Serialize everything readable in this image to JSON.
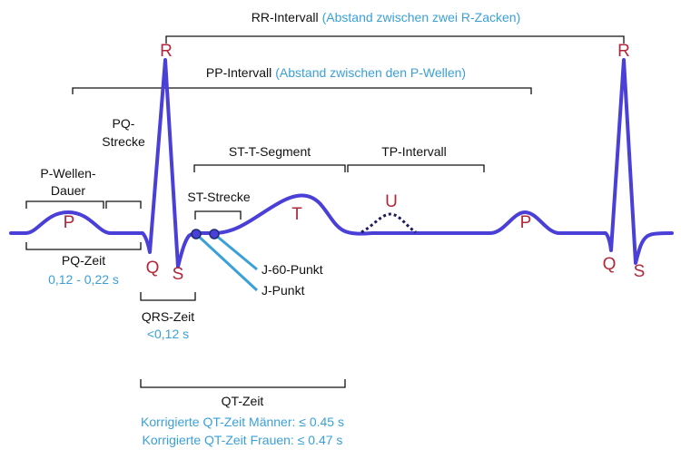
{
  "colors": {
    "wave": "#4a3fd6",
    "wave_label": "#b2283a",
    "annotation": "#3aa0d8",
    "bracket": "#111111",
    "u_wave": "#1c1c5c"
  },
  "waves": {
    "p1": "P",
    "q1": "Q",
    "r1": "R",
    "s1": "S",
    "t": "T",
    "u": "U",
    "p2": "P",
    "r2": "R",
    "q2": "Q",
    "s2": "S"
  },
  "intervals": {
    "rr_title": "RR-Intervall",
    "rr_note": "(Abstand zwischen zwei R-Zacken)",
    "pp_title": "PP-Intervall",
    "pp_note": "(Abstand zwischen den P-Wellen)",
    "pq_strecke_line1": "PQ-",
    "pq_strecke_line2": "Strecke",
    "p_dauer_line1": "P-Wellen-",
    "p_dauer_line2": "Dauer",
    "st_t_segment": "ST-T-Segment",
    "tp_intervall": "TP-Intervall",
    "st_strecke": "ST-Strecke",
    "pq_zeit": "PQ-Zeit",
    "pq_zeit_value": "0,12 - 0,22 s",
    "qrs_zeit": "QRS-Zeit",
    "qrs_zeit_value": "<0,12 s",
    "qt_zeit": "QT-Zeit",
    "qt_men": "Korrigierte QT-Zeit Männer: ≤ 0.45 s",
    "qt_women": "Korrigierte QT-Zeit Frauen: ≤ 0.47 s",
    "j60_point": "J-60-Punkt",
    "j_point": "J-Punkt"
  }
}
